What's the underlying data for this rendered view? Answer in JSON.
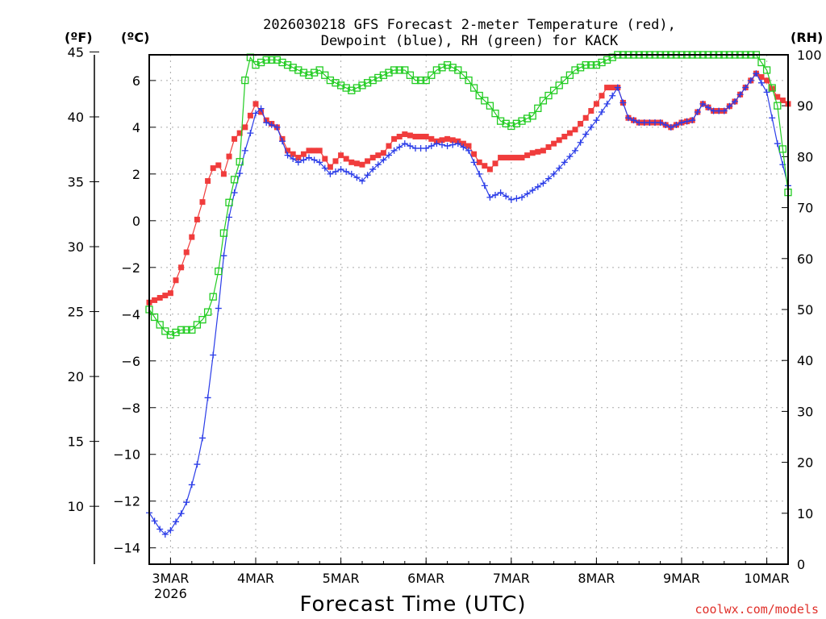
{
  "chart_data": {
    "type": "line",
    "title_line1": "2026030218 GFS Forecast 2-meter Temperature (red),",
    "title_line2": "Dewpoint (blue), RH (green) for KACK",
    "xlabel": "Forecast Time (UTC)",
    "credit": "coolwx.com/models",
    "unit_f": "(ºF)",
    "unit_c": "(ºC)",
    "unit_rh": "(RH)",
    "xlim_hours": [
      0,
      180
    ],
    "ylim_c": [
      -14.7,
      7.1
    ],
    "ylim_rh": [
      0,
      100
    ],
    "x_ticks": [
      {
        "hour": 6,
        "label": "3MAR",
        "sub": "2026"
      },
      {
        "hour": 30,
        "label": "4MAR",
        "sub": ""
      },
      {
        "hour": 54,
        "label": "5MAR",
        "sub": ""
      },
      {
        "hour": 78,
        "label": "6MAR",
        "sub": ""
      },
      {
        "hour": 102,
        "label": "7MAR",
        "sub": ""
      },
      {
        "hour": 126,
        "label": "8MAR",
        "sub": ""
      },
      {
        "hour": 150,
        "label": "9MAR",
        "sub": ""
      },
      {
        "hour": 174,
        "label": "10MAR",
        "sub": ""
      }
    ],
    "y_ticks_c": [
      -14,
      -12,
      -10,
      -8,
      -6,
      -4,
      -2,
      0,
      2,
      4,
      6
    ],
    "y_ticks_f": [
      10,
      15,
      20,
      25,
      30,
      35,
      40,
      45
    ],
    "y_ticks_rh": [
      0,
      10,
      20,
      30,
      40,
      50,
      60,
      70,
      80,
      90,
      100
    ],
    "series": [
      {
        "name": "Temperature",
        "color": "#f03c3c",
        "marker": "square",
        "key_points": [
          [
            0,
            -3.5
          ],
          [
            3,
            -3.3
          ],
          [
            6,
            -3.1
          ],
          [
            9,
            -2.0
          ],
          [
            12,
            -0.7
          ],
          [
            15,
            0.8
          ],
          [
            17,
            2.0
          ],
          [
            19,
            2.5
          ],
          [
            21,
            2.0
          ],
          [
            24,
            3.5
          ],
          [
            27,
            4.0
          ],
          [
            30,
            5.0
          ],
          [
            33,
            4.3
          ],
          [
            36,
            4.0
          ],
          [
            39,
            3.0
          ],
          [
            42,
            2.7
          ],
          [
            45,
            3.0
          ],
          [
            48,
            3.0
          ],
          [
            51,
            2.3
          ],
          [
            54,
            2.8
          ],
          [
            57,
            2.5
          ],
          [
            60,
            2.4
          ],
          [
            63,
            2.7
          ],
          [
            66,
            2.9
          ],
          [
            69,
            3.5
          ],
          [
            72,
            3.7
          ],
          [
            75,
            3.6
          ],
          [
            78,
            3.6
          ],
          [
            81,
            3.4
          ],
          [
            84,
            3.5
          ],
          [
            87,
            3.4
          ],
          [
            90,
            3.2
          ],
          [
            93,
            2.5
          ],
          [
            96,
            2.2
          ],
          [
            99,
            2.7
          ],
          [
            102,
            2.7
          ],
          [
            105,
            2.7
          ],
          [
            108,
            2.9
          ],
          [
            111,
            3.0
          ],
          [
            114,
            3.3
          ],
          [
            117,
            3.6
          ],
          [
            120,
            3.9
          ],
          [
            123,
            4.4
          ],
          [
            126,
            5.0
          ],
          [
            129,
            5.7
          ],
          [
            132,
            5.7
          ],
          [
            135,
            4.4
          ],
          [
            138,
            4.2
          ],
          [
            141,
            4.2
          ],
          [
            144,
            4.2
          ],
          [
            147,
            4.0
          ],
          [
            150,
            4.2
          ],
          [
            153,
            4.3
          ],
          [
            156,
            5.0
          ],
          [
            159,
            4.7
          ],
          [
            162,
            4.7
          ],
          [
            165,
            5.1
          ],
          [
            168,
            5.7
          ],
          [
            171,
            6.3
          ],
          [
            174,
            6.0
          ],
          [
            177,
            5.3
          ],
          [
            180,
            5.0
          ]
        ]
      },
      {
        "name": "Dewpoint",
        "color": "#2a3ce8",
        "marker": "plus",
        "key_points": [
          [
            0,
            -12.5
          ],
          [
            3,
            -13.2
          ],
          [
            5,
            -13.5
          ],
          [
            7,
            -13.0
          ],
          [
            10,
            -12.3
          ],
          [
            13,
            -10.8
          ],
          [
            15,
            -9.3
          ],
          [
            17,
            -7.0
          ],
          [
            19,
            -4.5
          ],
          [
            21,
            -1.5
          ],
          [
            23,
            0.7
          ],
          [
            25,
            1.7
          ],
          [
            27,
            3.0
          ],
          [
            29,
            4.0
          ],
          [
            30,
            4.6
          ],
          [
            31,
            5.0
          ],
          [
            33,
            4.2
          ],
          [
            36,
            4.0
          ],
          [
            39,
            2.8
          ],
          [
            42,
            2.5
          ],
          [
            45,
            2.7
          ],
          [
            48,
            2.5
          ],
          [
            51,
            2.0
          ],
          [
            54,
            2.2
          ],
          [
            57,
            2.0
          ],
          [
            60,
            1.7
          ],
          [
            63,
            2.2
          ],
          [
            66,
            2.6
          ],
          [
            69,
            3.0
          ],
          [
            72,
            3.3
          ],
          [
            75,
            3.1
          ],
          [
            78,
            3.1
          ],
          [
            81,
            3.3
          ],
          [
            84,
            3.2
          ],
          [
            87,
            3.3
          ],
          [
            90,
            3.0
          ],
          [
            93,
            2.0
          ],
          [
            96,
            1.0
          ],
          [
            99,
            1.2
          ],
          [
            102,
            0.9
          ],
          [
            105,
            1.0
          ],
          [
            108,
            1.3
          ],
          [
            111,
            1.6
          ],
          [
            114,
            2.0
          ],
          [
            117,
            2.5
          ],
          [
            120,
            3.0
          ],
          [
            123,
            3.7
          ],
          [
            126,
            4.3
          ],
          [
            129,
            5.0
          ],
          [
            132,
            5.7
          ],
          [
            135,
            4.4
          ],
          [
            138,
            4.2
          ],
          [
            141,
            4.2
          ],
          [
            144,
            4.2
          ],
          [
            147,
            4.0
          ],
          [
            150,
            4.2
          ],
          [
            153,
            4.3
          ],
          [
            156,
            5.0
          ],
          [
            159,
            4.7
          ],
          [
            162,
            4.7
          ],
          [
            165,
            5.1
          ],
          [
            168,
            5.7
          ],
          [
            171,
            6.3
          ],
          [
            174,
            5.5
          ],
          [
            177,
            3.3
          ],
          [
            180,
            1.5
          ]
        ]
      },
      {
        "name": "RH",
        "color": "#22cc22",
        "marker": "open-square",
        "key_points": [
          [
            0,
            50
          ],
          [
            2,
            48
          ],
          [
            4,
            46
          ],
          [
            6,
            45
          ],
          [
            9,
            46
          ],
          [
            12,
            46
          ],
          [
            15,
            48
          ],
          [
            17,
            50
          ],
          [
            19,
            55
          ],
          [
            21,
            65
          ],
          [
            23,
            73
          ],
          [
            25,
            78
          ],
          [
            26,
            80
          ],
          [
            27,
            95
          ],
          [
            28,
            100
          ],
          [
            30,
            98
          ],
          [
            33,
            99
          ],
          [
            36,
            99
          ],
          [
            39,
            98
          ],
          [
            42,
            97
          ],
          [
            45,
            96
          ],
          [
            48,
            97
          ],
          [
            51,
            95
          ],
          [
            54,
            94
          ],
          [
            57,
            93
          ],
          [
            60,
            94
          ],
          [
            63,
            95
          ],
          [
            66,
            96
          ],
          [
            69,
            97
          ],
          [
            72,
            97
          ],
          [
            75,
            95
          ],
          [
            78,
            95
          ],
          [
            81,
            97
          ],
          [
            84,
            98
          ],
          [
            87,
            97
          ],
          [
            90,
            95
          ],
          [
            93,
            92
          ],
          [
            96,
            90
          ],
          [
            99,
            87
          ],
          [
            102,
            86
          ],
          [
            105,
            87
          ],
          [
            108,
            88
          ],
          [
            111,
            91
          ],
          [
            114,
            93
          ],
          [
            117,
            95
          ],
          [
            120,
            97
          ],
          [
            123,
            98
          ],
          [
            126,
            98
          ],
          [
            129,
            99
          ],
          [
            132,
            100
          ],
          [
            135,
            100
          ],
          [
            138,
            100
          ],
          [
            141,
            100
          ],
          [
            144,
            100
          ],
          [
            147,
            100
          ],
          [
            150,
            100
          ],
          [
            153,
            100
          ],
          [
            156,
            100
          ],
          [
            159,
            100
          ],
          [
            162,
            100
          ],
          [
            165,
            100
          ],
          [
            168,
            100
          ],
          [
            171,
            100
          ],
          [
            174,
            97
          ],
          [
            177,
            90
          ],
          [
            180,
            73
          ]
        ]
      }
    ]
  }
}
